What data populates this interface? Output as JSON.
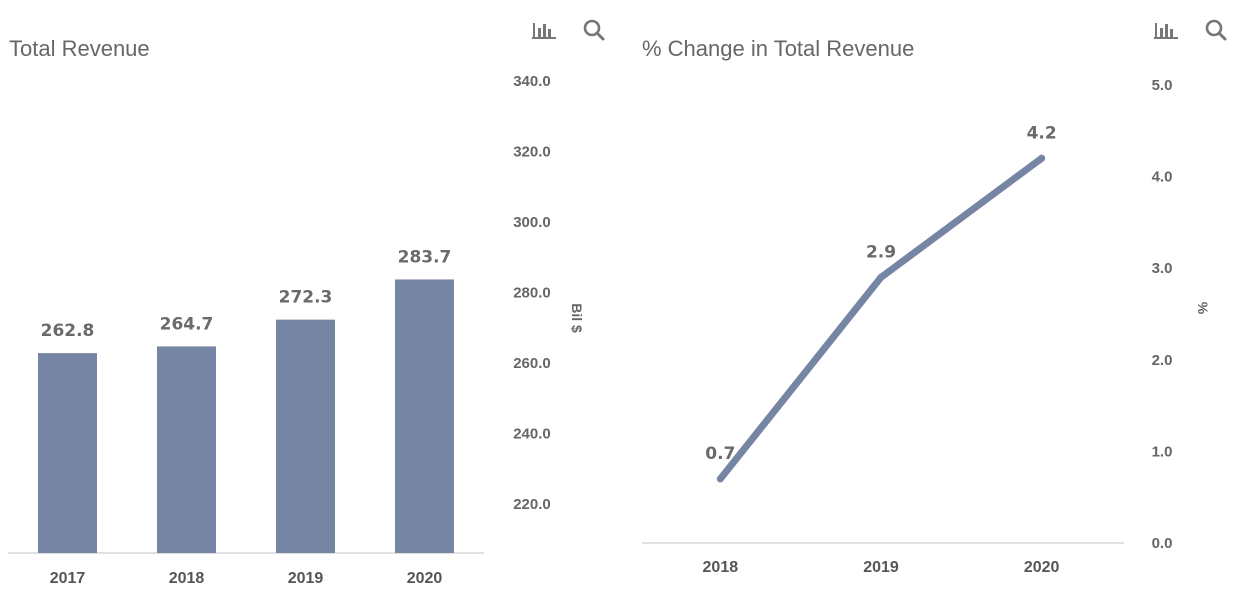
{
  "toolbar": {
    "chart_icon": "bar-chart-icon",
    "search_icon": "search-icon"
  },
  "colors": {
    "bar": "#7585a3",
    "line": "#7585a3",
    "axis": "#d6d6d6",
    "text": "#666666"
  },
  "chart_data": [
    {
      "type": "bar",
      "title": "Total Revenue",
      "categories": [
        "2017",
        "2018",
        "2019",
        "2020"
      ],
      "values": [
        262.8,
        264.7,
        272.3,
        283.7
      ],
      "value_labels": [
        "262.8",
        "264.7",
        "272.3",
        "283.7"
      ],
      "ylabel": "Bil $",
      "yticks": [
        "220.0",
        "240.0",
        "260.0",
        "280.0",
        "300.0",
        "320.0",
        "340.0"
      ],
      "ylim": [
        205,
        340
      ],
      "yaxis_side": "right",
      "grid": false,
      "legend": "none"
    },
    {
      "type": "line",
      "title": "% Change in Total Revenue",
      "categories": [
        "2018",
        "2019",
        "2020"
      ],
      "values": [
        0.7,
        2.9,
        4.2
      ],
      "value_labels": [
        "0.7",
        "2.9",
        "4.2"
      ],
      "ylabel": "%",
      "yticks": [
        "0.0",
        "1.0",
        "2.0",
        "3.0",
        "4.0",
        "5.0"
      ],
      "ylim": [
        0,
        5
      ],
      "yaxis_side": "right",
      "grid": false,
      "legend": "none"
    }
  ]
}
